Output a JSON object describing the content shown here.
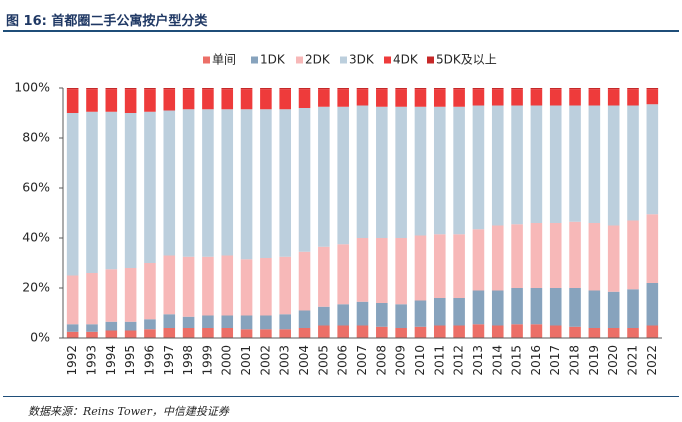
{
  "source": "数据来源：Reins Tower，中信建投证券",
  "chart_data": {
    "type": "bar",
    "stacked": true,
    "title": "图 16: 首都圈二手公寓按户型分类",
    "xlabel": "",
    "ylabel": "",
    "ylim": [
      0,
      100
    ],
    "yticks": [
      {
        "value": 0,
        "label": "0%"
      },
      {
        "value": 20,
        "label": "20%"
      },
      {
        "value": 40,
        "label": "40%"
      },
      {
        "value": 60,
        "label": "60%"
      },
      {
        "value": 80,
        "label": "80%"
      },
      {
        "value": 100,
        "label": "100%"
      }
    ],
    "grid": false,
    "legend": "top-center",
    "categories": [
      "1992",
      "1993",
      "1994",
      "1995",
      "1996",
      "1997",
      "1998",
      "1999",
      "2000",
      "2001",
      "2002",
      "2003",
      "2004",
      "2005",
      "2006",
      "2007",
      "2008",
      "2009",
      "2010",
      "2011",
      "2012",
      "2013",
      "2014",
      "2015",
      "2016",
      "2017",
      "2018",
      "2019",
      "2020",
      "2021",
      "2022"
    ],
    "series": [
      {
        "name": "单间",
        "color": "#ec6f67",
        "values": [
          2.5,
          2.5,
          3,
          3,
          3.5,
          4,
          4,
          4,
          4,
          3.5,
          3.5,
          3.5,
          4,
          5,
          5,
          5,
          4.5,
          4,
          4.5,
          5,
          5,
          5.5,
          5,
          5.5,
          5.5,
          5,
          4.5,
          4,
          4,
          4,
          5
        ]
      },
      {
        "name": "1DK",
        "color": "#87a3bd",
        "values": [
          3,
          3,
          3.5,
          3.5,
          4,
          5.5,
          4.5,
          5,
          5,
          5.5,
          5.5,
          6,
          7,
          7.5,
          8.5,
          9.5,
          9.5,
          9.5,
          10.5,
          11,
          11,
          13.5,
          14,
          14.5,
          14.5,
          15,
          15.5,
          15,
          14.5,
          15.5,
          17
        ]
      },
      {
        "name": "2DK",
        "color": "#f7b8b8",
        "values": [
          19.5,
          20.5,
          21,
          21.5,
          22.5,
          23.5,
          24,
          23.5,
          24,
          22.5,
          23,
          23,
          23.5,
          24,
          24,
          25.5,
          26,
          26.5,
          26,
          25.5,
          25.5,
          24.5,
          26,
          25.5,
          26,
          26,
          26.5,
          27,
          26.5,
          27.5,
          27.5
        ]
      },
      {
        "name": "3DK",
        "color": "#bccfdd",
        "values": [
          65,
          64.5,
          63,
          62,
          60.5,
          58,
          59,
          59,
          58.5,
          60,
          59.5,
          59,
          57.5,
          56,
          55,
          53,
          52.5,
          52.5,
          51.5,
          51,
          51,
          49.5,
          48,
          47.5,
          47,
          47,
          46.5,
          47,
          48,
          46,
          44
        ]
      },
      {
        "name": "4DK",
        "color": "#ee3b3b",
        "values": [
          9.5,
          9,
          9,
          9.5,
          9,
          8.5,
          8,
          8,
          8,
          8,
          8,
          8,
          7.5,
          7,
          7,
          6.5,
          7,
          7,
          7,
          7,
          7,
          6.5,
          6.5,
          6.5,
          6.5,
          6.5,
          6.5,
          6.5,
          6.5,
          6.5,
          6
        ]
      },
      {
        "name": "5DK及以上",
        "color": "#c62828",
        "values": [
          0.5,
          0.5,
          0.5,
          0.5,
          0.5,
          0.5,
          0.5,
          0.5,
          0.5,
          0.5,
          0.5,
          0.5,
          0.5,
          0.5,
          0.5,
          0.5,
          0.5,
          0.5,
          0.5,
          0.5,
          0.5,
          0.5,
          0.5,
          0.5,
          0.5,
          0.5,
          0.5,
          0.5,
          0.5,
          0.5,
          0.5
        ]
      }
    ]
  }
}
